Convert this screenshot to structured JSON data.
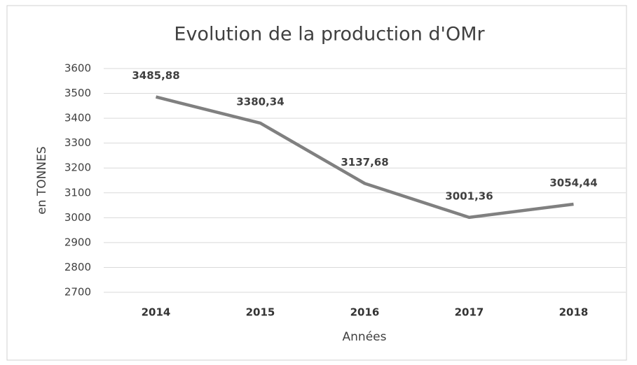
{
  "chart_data": {
    "type": "line",
    "title": "Evolution de la production d'OMr",
    "x_label": "Années",
    "y_label": "en TONNES",
    "categories": [
      "2014",
      "2015",
      "2016",
      "2017",
      "2018"
    ],
    "series": [
      {
        "name": "OMr",
        "color": "#808080",
        "values": [
          3485.88,
          3380.34,
          3137.68,
          3001.36,
          3054.44
        ],
        "value_labels": [
          "3485,88",
          "3380,34",
          "3137,68",
          "3001,36",
          "3054,44"
        ]
      }
    ],
    "ylim": [
      2700,
      3600
    ],
    "yticks": [
      2700,
      2800,
      2900,
      3000,
      3100,
      3200,
      3300,
      3400,
      3500,
      3600
    ],
    "grid": true
  }
}
